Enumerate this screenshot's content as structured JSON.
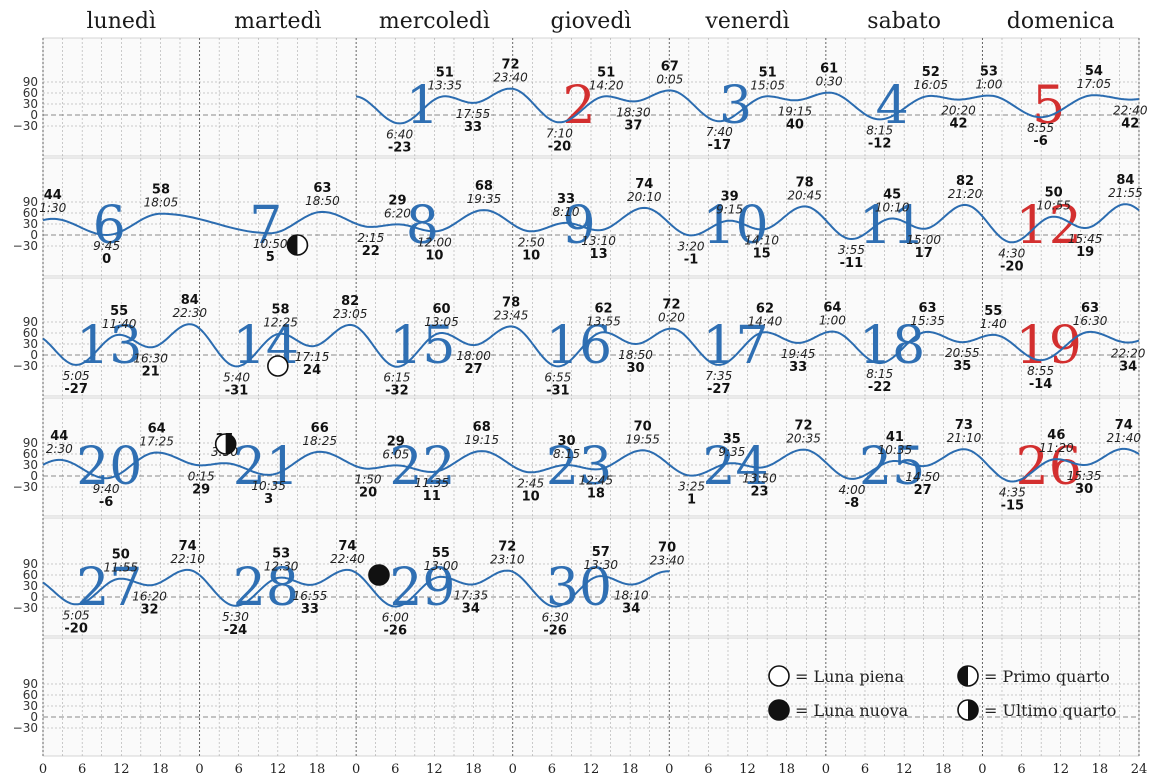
{
  "chart_data": {
    "type": "line",
    "day_headers": [
      "lunedì",
      "martedì",
      "mercoledì",
      "giovedì",
      "venerdì",
      "sabato",
      "domenica"
    ],
    "y_ticks": [
      "90",
      "60",
      "30",
      "0",
      "−30"
    ],
    "x_ticks": [
      "0",
      "6",
      "12",
      "18",
      "0",
      "6",
      "12",
      "18",
      "0",
      "6",
      "12",
      "18",
      "0",
      "6",
      "12",
      "18",
      "0",
      "6",
      "12",
      "18",
      "0",
      "6",
      "12",
      "18",
      "0",
      "6",
      "12",
      "18",
      "24"
    ],
    "ylim": [
      -50,
      115
    ],
    "grid": true,
    "colors": {
      "curve": "#2b6cb0",
      "weekday": "#2f6fb3",
      "sunday": "#d32f2f"
    },
    "days": [
      {
        "n": "1",
        "row": 0,
        "col": 2,
        "red": false
      },
      {
        "n": "2",
        "row": 0,
        "col": 3,
        "red": true
      },
      {
        "n": "3",
        "row": 0,
        "col": 4,
        "red": false
      },
      {
        "n": "4",
        "row": 0,
        "col": 5,
        "red": false
      },
      {
        "n": "5",
        "row": 0,
        "col": 6,
        "red": true
      },
      {
        "n": "6",
        "row": 1,
        "col": 0,
        "red": false
      },
      {
        "n": "7",
        "row": 1,
        "col": 1,
        "red": false
      },
      {
        "n": "8",
        "row": 1,
        "col": 2,
        "red": false
      },
      {
        "n": "9",
        "row": 1,
        "col": 3,
        "red": false
      },
      {
        "n": "10",
        "row": 1,
        "col": 4,
        "red": false
      },
      {
        "n": "11",
        "row": 1,
        "col": 5,
        "red": false
      },
      {
        "n": "12",
        "row": 1,
        "col": 6,
        "red": true
      },
      {
        "n": "13",
        "row": 2,
        "col": 0,
        "red": false
      },
      {
        "n": "14",
        "row": 2,
        "col": 1,
        "red": false
      },
      {
        "n": "15",
        "row": 2,
        "col": 2,
        "red": false
      },
      {
        "n": "16",
        "row": 2,
        "col": 3,
        "red": false
      },
      {
        "n": "17",
        "row": 2,
        "col": 4,
        "red": false
      },
      {
        "n": "18",
        "row": 2,
        "col": 5,
        "red": false
      },
      {
        "n": "19",
        "row": 2,
        "col": 6,
        "red": true
      },
      {
        "n": "20",
        "row": 3,
        "col": 0,
        "red": false
      },
      {
        "n": "21",
        "row": 3,
        "col": 1,
        "red": false
      },
      {
        "n": "22",
        "row": 3,
        "col": 2,
        "red": false
      },
      {
        "n": "23",
        "row": 3,
        "col": 3,
        "red": false
      },
      {
        "n": "24",
        "row": 3,
        "col": 4,
        "red": false
      },
      {
        "n": "25",
        "row": 3,
        "col": 5,
        "red": false
      },
      {
        "n": "26",
        "row": 3,
        "col": 6,
        "red": true
      },
      {
        "n": "27",
        "row": 4,
        "col": 0,
        "red": false
      },
      {
        "n": "28",
        "row": 4,
        "col": 1,
        "red": false
      },
      {
        "n": "29",
        "row": 4,
        "col": 2,
        "red": false
      },
      {
        "n": "30",
        "row": 4,
        "col": 3,
        "red": false
      }
    ],
    "rows": [
      {
        "start": 2,
        "end": 7,
        "extremes": [
          {
            "d": 0,
            "t": "6:40",
            "v": -23
          },
          {
            "d": 0,
            "t": "13:35",
            "v": 51
          },
          {
            "d": 0,
            "t": "17:55",
            "v": 33
          },
          {
            "d": 0,
            "t": "23:40",
            "v": 72
          },
          {
            "d": 1,
            "t": "7:10",
            "v": -20
          },
          {
            "d": 1,
            "t": "14:20",
            "v": 51
          },
          {
            "d": 1,
            "t": "18:30",
            "v": 37
          },
          {
            "d": 2,
            "t": "0:05",
            "v": 67
          },
          {
            "d": 2,
            "t": "7:40",
            "v": -17
          },
          {
            "d": 2,
            "t": "15:05",
            "v": 51
          },
          {
            "d": 2,
            "t": "19:15",
            "v": 40
          },
          {
            "d": 3,
            "t": "0:30",
            "v": 61
          },
          {
            "d": 3,
            "t": "8:15",
            "v": -12
          },
          {
            "d": 3,
            "t": "16:05",
            "v": 52
          },
          {
            "d": 3,
            "t": "20:20",
            "v": 42
          },
          {
            "d": 4,
            "t": "1:00",
            "v": 53
          },
          {
            "d": 4,
            "t": "8:55",
            "v": -6
          },
          {
            "d": 4,
            "t": "17:05",
            "v": 54
          },
          {
            "d": 4,
            "t": "22:40",
            "v": 42
          }
        ]
      },
      {
        "start": 0,
        "end": 7,
        "extremes": [
          {
            "d": 0,
            "t": "1:30",
            "v": 44
          },
          {
            "d": 0,
            "t": "9:45",
            "v": 0
          },
          {
            "d": 0,
            "t": "18:05",
            "v": 58
          },
          {
            "d": 1,
            "t": "10:50",
            "v": 5
          },
          {
            "d": 1,
            "t": "18:50",
            "v": 63
          },
          {
            "d": 2,
            "t": "2:15",
            "v": 22
          },
          {
            "d": 2,
            "t": "6:20",
            "v": 29
          },
          {
            "d": 2,
            "t": "12:00",
            "v": 10
          },
          {
            "d": 2,
            "t": "19:35",
            "v": 68
          },
          {
            "d": 3,
            "t": "2:50",
            "v": 10
          },
          {
            "d": 3,
            "t": "8:10",
            "v": 33
          },
          {
            "d": 3,
            "t": "13:10",
            "v": 13
          },
          {
            "d": 3,
            "t": "20:10",
            "v": 74
          },
          {
            "d": 4,
            "t": "3:20",
            "v": -1
          },
          {
            "d": 4,
            "t": "9:15",
            "v": 39
          },
          {
            "d": 4,
            "t": "14:10",
            "v": 15
          },
          {
            "d": 4,
            "t": "20:45",
            "v": 78
          },
          {
            "d": 5,
            "t": "3:55",
            "v": -11
          },
          {
            "d": 5,
            "t": "10:10",
            "v": 45
          },
          {
            "d": 5,
            "t": "15:00",
            "v": 17
          },
          {
            "d": 5,
            "t": "21:20",
            "v": 82
          },
          {
            "d": 6,
            "t": "4:30",
            "v": -20
          },
          {
            "d": 6,
            "t": "10:55",
            "v": 50
          },
          {
            "d": 6,
            "t": "15:45",
            "v": 19
          },
          {
            "d": 6,
            "t": "21:55",
            "v": 84
          }
        ]
      },
      {
        "start": 0,
        "end": 7,
        "extremes": [
          {
            "d": 0,
            "t": "5:05",
            "v": -27
          },
          {
            "d": 0,
            "t": "11:40",
            "v": 55
          },
          {
            "d": 0,
            "t": "16:30",
            "v": 21
          },
          {
            "d": 0,
            "t": "22:30",
            "v": 84
          },
          {
            "d": 1,
            "t": "5:40",
            "v": -31
          },
          {
            "d": 1,
            "t": "12:25",
            "v": 58
          },
          {
            "d": 1,
            "t": "17:15",
            "v": 24
          },
          {
            "d": 1,
            "t": "23:05",
            "v": 82
          },
          {
            "d": 2,
            "t": "6:15",
            "v": -32
          },
          {
            "d": 2,
            "t": "13:05",
            "v": 60
          },
          {
            "d": 2,
            "t": "18:00",
            "v": 27
          },
          {
            "d": 2,
            "t": "23:45",
            "v": 78
          },
          {
            "d": 3,
            "t": "6:55",
            "v": -31
          },
          {
            "d": 3,
            "t": "13:55",
            "v": 62
          },
          {
            "d": 3,
            "t": "18:50",
            "v": 30
          },
          {
            "d": 4,
            "t": "0:20",
            "v": 72
          },
          {
            "d": 4,
            "t": "7:35",
            "v": -27
          },
          {
            "d": 4,
            "t": "14:40",
            "v": 62
          },
          {
            "d": 4,
            "t": "19:45",
            "v": 33
          },
          {
            "d": 5,
            "t": "1:00",
            "v": 64
          },
          {
            "d": 5,
            "t": "8:15",
            "v": -22
          },
          {
            "d": 5,
            "t": "15:35",
            "v": 63
          },
          {
            "d": 5,
            "t": "20:55",
            "v": 35
          },
          {
            "d": 6,
            "t": "1:40",
            "v": 55
          },
          {
            "d": 6,
            "t": "8:55",
            "v": -14
          },
          {
            "d": 6,
            "t": "16:30",
            "v": 63
          },
          {
            "d": 6,
            "t": "22:20",
            "v": 34
          }
        ]
      },
      {
        "start": 0,
        "end": 7,
        "extremes": [
          {
            "d": 0,
            "t": "2:30",
            "v": 44
          },
          {
            "d": 0,
            "t": "9:40",
            "v": -6
          },
          {
            "d": 0,
            "t": "17:25",
            "v": 64
          },
          {
            "d": 1,
            "t": "0:15",
            "v": 29
          },
          {
            "d": 1,
            "t": "3:50",
            "v": 35
          },
          {
            "d": 1,
            "t": "10:35",
            "v": 3
          },
          {
            "d": 1,
            "t": "18:25",
            "v": 66
          },
          {
            "d": 2,
            "t": "1:50",
            "v": 20
          },
          {
            "d": 2,
            "t": "6:05",
            "v": 29
          },
          {
            "d": 2,
            "t": "11:35",
            "v": 11
          },
          {
            "d": 2,
            "t": "19:15",
            "v": 68
          },
          {
            "d": 3,
            "t": "2:45",
            "v": 10
          },
          {
            "d": 3,
            "t": "8:15",
            "v": 30
          },
          {
            "d": 3,
            "t": "12:45",
            "v": 18
          },
          {
            "d": 3,
            "t": "19:55",
            "v": 70
          },
          {
            "d": 4,
            "t": "3:25",
            "v": 1
          },
          {
            "d": 4,
            "t": "9:35",
            "v": 35
          },
          {
            "d": 4,
            "t": "13:50",
            "v": 23
          },
          {
            "d": 4,
            "t": "20:35",
            "v": 72
          },
          {
            "d": 5,
            "t": "4:00",
            "v": -8
          },
          {
            "d": 5,
            "t": "10:35",
            "v": 41
          },
          {
            "d": 5,
            "t": "14:50",
            "v": 27
          },
          {
            "d": 5,
            "t": "21:10",
            "v": 73
          },
          {
            "d": 6,
            "t": "4:35",
            "v": -15
          },
          {
            "d": 6,
            "t": "11:20",
            "v": 46
          },
          {
            "d": 6,
            "t": "15:35",
            "v": 30
          },
          {
            "d": 6,
            "t": "21:40",
            "v": 74
          }
        ]
      },
      {
        "start": 0,
        "end": 4,
        "extremes": [
          {
            "d": 0,
            "t": "5:05",
            "v": -20
          },
          {
            "d": 0,
            "t": "11:55",
            "v": 50
          },
          {
            "d": 0,
            "t": "16:20",
            "v": 32
          },
          {
            "d": 0,
            "t": "22:10",
            "v": 74
          },
          {
            "d": 1,
            "t": "5:30",
            "v": -24
          },
          {
            "d": 1,
            "t": "12:30",
            "v": 53
          },
          {
            "d": 1,
            "t": "16:55",
            "v": 33
          },
          {
            "d": 1,
            "t": "22:40",
            "v": 74
          },
          {
            "d": 2,
            "t": "6:00",
            "v": -26
          },
          {
            "d": 2,
            "t": "13:00",
            "v": 55
          },
          {
            "d": 2,
            "t": "17:35",
            "v": 34
          },
          {
            "d": 2,
            "t": "23:10",
            "v": 72
          },
          {
            "d": 3,
            "t": "6:30",
            "v": -26
          },
          {
            "d": 3,
            "t": "13:30",
            "v": 57
          },
          {
            "d": 3,
            "t": "18:10",
            "v": 34
          },
          {
            "d": 3,
            "t": "23:40",
            "v": 70
          }
        ]
      },
      {
        "start": 0,
        "end": 0,
        "extremes": []
      }
    ],
    "moon_phases": [
      {
        "phase": "first",
        "row": 1,
        "day_index": 1,
        "hour": 15
      },
      {
        "phase": "full",
        "row": 2,
        "day_index": 1,
        "hour": 12
      },
      {
        "phase": "last",
        "row": 3,
        "day_index": 1,
        "hour": 4
      },
      {
        "phase": "new",
        "row": 4,
        "day_index": 2,
        "hour": 3.5
      }
    ],
    "legend": [
      {
        "phase": "full",
        "label": "= Luna piena"
      },
      {
        "phase": "first",
        "label": "= Primo quarto"
      },
      {
        "phase": "new",
        "label": "= Luna nuova"
      },
      {
        "phase": "last",
        "label": "= Ultimo quarto"
      }
    ]
  }
}
